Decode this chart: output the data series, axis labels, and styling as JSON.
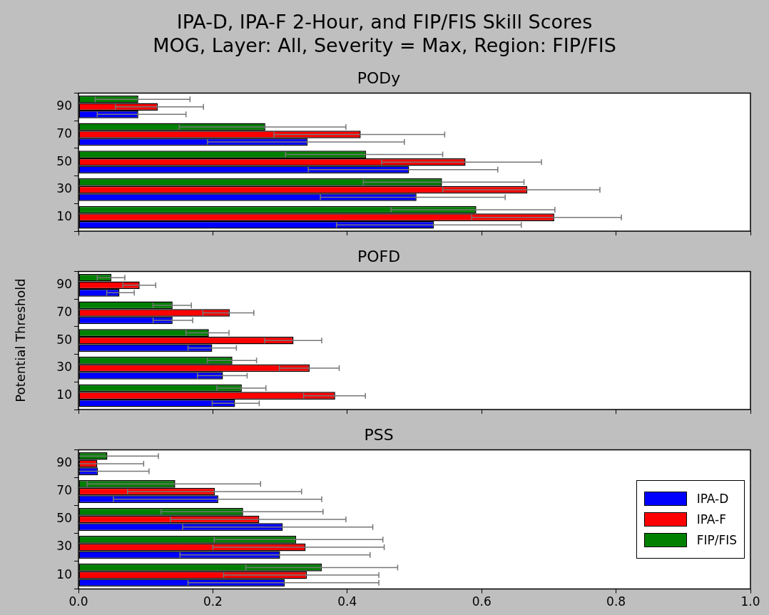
{
  "chart_data": [
    {
      "type": "other",
      "title": "IPA-D, IPA-F 2-Hour, and FIP/FIS Skill Scores",
      "subtitle": "MOG, Layer: All, Severity = Max, Region: FIP/FIS"
    },
    {
      "type": "bar",
      "orientation": "horizontal",
      "title": "PODy",
      "categories": [
        "90",
        "70",
        "50",
        "30",
        "10"
      ],
      "xlim": [
        0,
        1
      ],
      "xticks": [
        0,
        0.2,
        0.4,
        0.6,
        0.8,
        1
      ],
      "tick_labels": "y",
      "grid": false,
      "series": [
        {
          "color": "#0000ff",
          "values": [
            0.089,
            0.341,
            0.492,
            0.503,
            0.529
          ],
          "errors": [
            [
              0.028,
              0.16
            ],
            [
              0.192,
              0.485
            ],
            [
              0.342,
              0.624
            ],
            [
              0.36,
              0.635
            ],
            [
              0.384,
              0.659
            ]
          ]
        },
        {
          "color": "#ff0000",
          "values": [
            0.118,
            0.42,
            0.576,
            0.668,
            0.708
          ],
          "errors": [
            [
              0.055,
              0.186
            ],
            [
              0.291,
              0.545
            ],
            [
              0.451,
              0.689
            ],
            [
              0.542,
              0.776
            ],
            [
              0.585,
              0.808
            ]
          ]
        },
        {
          "color": "#008000",
          "values": [
            0.089,
            0.278,
            0.428,
            0.541,
            0.592
          ],
          "errors": [
            [
              0.025,
              0.166
            ],
            [
              0.15,
              0.398
            ],
            [
              0.308,
              0.542
            ],
            [
              0.424,
              0.663
            ],
            [
              0.465,
              0.709
            ]
          ]
        }
      ]
    },
    {
      "type": "bar",
      "orientation": "horizontal",
      "title": "POFD",
      "ylabel": "Potential Threshold",
      "categories": [
        "90",
        "70",
        "50",
        "30",
        "10"
      ],
      "xlim": [
        0,
        1
      ],
      "xticks": [
        0,
        0.2,
        0.4,
        0.6,
        0.8,
        1
      ],
      "tick_labels": "y",
      "grid": false,
      "series": [
        {
          "color": "#0000ff",
          "values": [
            0.061,
            0.14,
            0.199,
            0.215,
            0.233
          ],
          "errors": [
            [
              0.042,
              0.083
            ],
            [
              0.111,
              0.17
            ],
            [
              0.163,
              0.235
            ],
            [
              0.177,
              0.251
            ],
            [
              0.199,
              0.269
            ]
          ]
        },
        {
          "color": "#ff0000",
          "values": [
            0.091,
            0.225,
            0.32,
            0.344,
            0.382
          ],
          "errors": [
            [
              0.066,
              0.115
            ],
            [
              0.185,
              0.261
            ],
            [
              0.277,
              0.362
            ],
            [
              0.299,
              0.388
            ],
            [
              0.335,
              0.427
            ]
          ]
        },
        {
          "color": "#008000",
          "values": [
            0.049,
            0.14,
            0.194,
            0.229,
            0.243
          ],
          "errors": [
            [
              0.028,
              0.069
            ],
            [
              0.111,
              0.168
            ],
            [
              0.16,
              0.224
            ],
            [
              0.192,
              0.265
            ],
            [
              0.206,
              0.279
            ]
          ]
        }
      ]
    },
    {
      "type": "bar",
      "orientation": "horizontal",
      "title": "PSS",
      "categories": [
        "90",
        "70",
        "50",
        "30",
        "10"
      ],
      "xlim": [
        0,
        1
      ],
      "xticks": [
        {
          "value": 0,
          "label": "0.0"
        },
        0.2,
        0.4,
        0.6,
        0.8,
        {
          "value": 1,
          "label": "1.0"
        }
      ],
      "grid": false,
      "legend": "right",
      "series": [
        {
          "name": "IPA-D",
          "color": "#0000ff",
          "values": [
            0.029,
            0.208,
            0.304,
            0.3,
            0.307
          ],
          "errors": [
            [
              0,
              0.105
            ],
            [
              0.052,
              0.362
            ],
            [
              0.155,
              0.438
            ],
            [
              0.151,
              0.434
            ],
            [
              0.163,
              0.447
            ]
          ]
        },
        {
          "name": "IPA-F",
          "color": "#ff0000",
          "values": [
            0.028,
            0.203,
            0.269,
            0.338,
            0.34
          ],
          "errors": [
            [
              0,
              0.097
            ],
            [
              0.073,
              0.332
            ],
            [
              0.137,
              0.398
            ],
            [
              0.2,
              0.455
            ],
            [
              0.216,
              0.447
            ]
          ]
        },
        {
          "name": "FIP/FIS",
          "color": "#008000",
          "values": [
            0.043,
            0.144,
            0.245,
            0.324,
            0.362
          ],
          "errors": [
            [
              0,
              0.119
            ],
            [
              0.013,
              0.271
            ],
            [
              0.123,
              0.364
            ],
            [
              0.202,
              0.453
            ],
            [
              0.249,
              0.475
            ]
          ]
        }
      ]
    }
  ]
}
